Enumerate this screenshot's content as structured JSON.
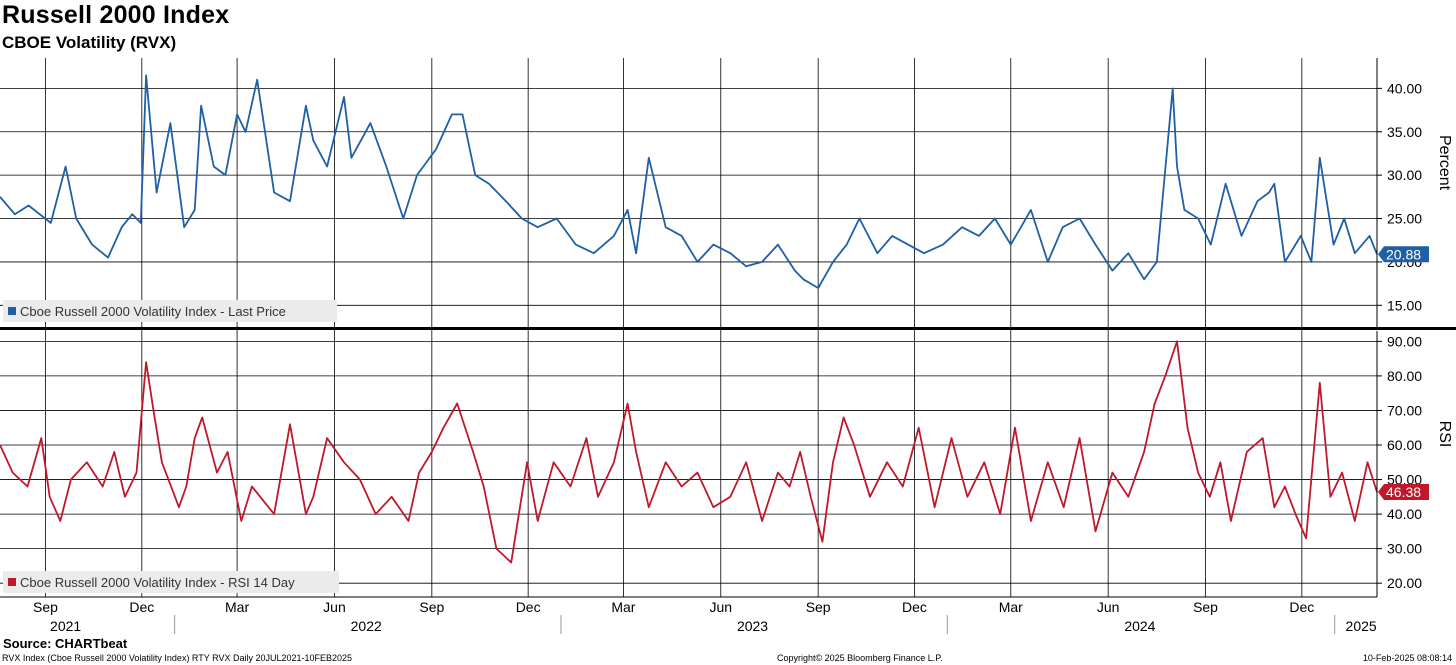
{
  "header": {
    "title": "Russell 2000 Index",
    "subtitle": "CBOE Volatility (RVX)"
  },
  "footer": {
    "source": "Source: CHARTbeat",
    "ticker_info": "RVX Index (Cboe Russell 2000 Volatility Index) RTY RVX  Daily 20JUL2021-10FEB2025",
    "copyright": "Copyright© 2025 Bloomberg Finance L.P.",
    "timestamp": "10-Feb-2025 08:08:14"
  },
  "colors": {
    "price_line": "#1f5fa6",
    "rsi_line": "#c0182b",
    "grid": "#000000"
  },
  "chart_data": [
    {
      "type": "line",
      "name": "price-panel",
      "legend": "Cboe Russell 2000 Volatility Index - Last Price",
      "ylabel": "Percent",
      "ylim": [
        12.5,
        43.5
      ],
      "yticks": [
        "15.00",
        "20.00",
        "25.00",
        "30.00",
        "35.00",
        "40.00"
      ],
      "last_value_label": "20.88",
      "x_range": [
        "2021-07-20",
        "2025-02-10"
      ],
      "series": [
        {
          "name": "Cboe Russell 2000 Volatility Index - Last Price",
          "x": [
            "2021-07-20",
            "2021-08-03",
            "2021-08-16",
            "2021-09-06",
            "2021-09-20",
            "2021-09-30",
            "2021-10-15",
            "2021-10-30",
            "2021-11-12",
            "2021-11-22",
            "2021-11-30",
            "2021-12-05",
            "2021-12-15",
            "2021-12-28",
            "2022-01-10",
            "2022-01-20",
            "2022-01-26",
            "2022-02-07",
            "2022-02-18",
            "2022-03-01",
            "2022-03-09",
            "2022-03-20",
            "2022-04-05",
            "2022-04-20",
            "2022-05-05",
            "2022-05-12",
            "2022-05-25",
            "2022-06-10",
            "2022-06-17",
            "2022-07-05",
            "2022-07-20",
            "2022-08-05",
            "2022-08-18",
            "2022-09-05",
            "2022-09-20",
            "2022-09-30",
            "2022-10-12",
            "2022-10-25",
            "2022-11-10",
            "2022-11-25",
            "2022-12-10",
            "2022-12-28",
            "2023-01-15",
            "2023-02-01",
            "2023-02-20",
            "2023-03-05",
            "2023-03-13",
            "2023-03-25",
            "2023-04-10",
            "2023-04-25",
            "2023-05-10",
            "2023-05-25",
            "2023-06-10",
            "2023-06-25",
            "2023-07-10",
            "2023-07-25",
            "2023-08-10",
            "2023-08-18",
            "2023-09-01",
            "2023-09-15",
            "2023-09-28",
            "2023-10-10",
            "2023-10-27",
            "2023-11-10",
            "2023-11-25",
            "2023-12-10",
            "2023-12-28",
            "2024-01-15",
            "2024-01-31",
            "2024-02-15",
            "2024-03-01",
            "2024-03-20",
            "2024-04-05",
            "2024-04-19",
            "2024-05-05",
            "2024-05-20",
            "2024-06-05",
            "2024-06-20",
            "2024-07-05",
            "2024-07-17",
            "2024-08-01",
            "2024-08-05",
            "2024-08-12",
            "2024-08-25",
            "2024-09-06",
            "2024-09-20",
            "2024-10-05",
            "2024-10-20",
            "2024-10-31",
            "2024-11-05",
            "2024-11-15",
            "2024-11-30",
            "2024-12-10",
            "2024-12-18",
            "2024-12-31",
            "2025-01-10",
            "2025-01-20",
            "2025-02-03",
            "2025-02-10"
          ],
          "values": [
            27.5,
            25.5,
            26.5,
            24.5,
            31,
            25,
            22,
            20.5,
            24,
            25.5,
            24.5,
            41.5,
            28,
            36,
            24,
            26,
            38,
            31,
            30,
            37,
            35,
            41,
            28,
            27,
            38,
            34,
            31,
            39,
            32,
            36,
            31,
            25,
            30,
            33,
            37,
            37,
            30,
            29,
            27,
            25,
            24,
            25,
            22,
            21,
            23,
            26,
            21,
            32,
            24,
            23,
            20,
            22,
            21,
            19.5,
            20,
            22,
            19,
            18,
            17,
            20,
            22,
            25,
            21,
            23,
            22,
            21,
            22,
            24,
            23,
            25,
            22,
            26,
            20,
            24,
            25,
            22,
            19,
            21,
            18,
            20,
            40,
            31,
            26,
            25,
            22,
            29,
            23,
            27,
            28,
            29,
            20,
            23,
            20,
            32,
            22,
            25,
            21,
            23,
            20.88
          ]
        }
      ]
    },
    {
      "type": "line",
      "name": "rsi-panel",
      "legend": "Cboe Russell 2000 Volatility Index - RSI 14 Day",
      "ylabel": "RSI",
      "ylim": [
        16,
        93
      ],
      "yticks": [
        "20.00",
        "30.00",
        "40.00",
        "50.00",
        "60.00",
        "70.00",
        "80.00",
        "90.00"
      ],
      "last_value_label": "46.38",
      "x_range": [
        "2021-07-20",
        "2025-02-10"
      ],
      "series": [
        {
          "name": "Cboe Russell 2000 Volatility Index - RSI 14 Day",
          "x": [
            "2021-07-20",
            "2021-08-01",
            "2021-08-15",
            "2021-08-28",
            "2021-09-05",
            "2021-09-15",
            "2021-09-25",
            "2021-10-10",
            "2021-10-25",
            "2021-11-05",
            "2021-11-15",
            "2021-11-26",
            "2021-12-05",
            "2021-12-12",
            "2021-12-20",
            "2022-01-05",
            "2022-01-12",
            "2022-01-20",
            "2022-01-27",
            "2022-02-10",
            "2022-02-20",
            "2022-03-05",
            "2022-03-15",
            "2022-04-05",
            "2022-04-20",
            "2022-05-05",
            "2022-05-12",
            "2022-05-25",
            "2022-06-10",
            "2022-06-25",
            "2022-07-10",
            "2022-07-25",
            "2022-08-10",
            "2022-08-20",
            "2022-09-01",
            "2022-09-12",
            "2022-09-25",
            "2022-10-10",
            "2022-10-20",
            "2022-11-01",
            "2022-11-15",
            "2022-11-30",
            "2022-12-10",
            "2022-12-25",
            "2023-01-10",
            "2023-01-25",
            "2023-02-05",
            "2023-02-20",
            "2023-03-05",
            "2023-03-13",
            "2023-03-25",
            "2023-04-10",
            "2023-04-25",
            "2023-05-10",
            "2023-05-25",
            "2023-06-10",
            "2023-06-25",
            "2023-07-10",
            "2023-07-25",
            "2023-08-05",
            "2023-08-15",
            "2023-08-25",
            "2023-09-05",
            "2023-09-15",
            "2023-09-25",
            "2023-10-05",
            "2023-10-20",
            "2023-11-05",
            "2023-11-20",
            "2023-12-05",
            "2023-12-20",
            "2024-01-05",
            "2024-01-20",
            "2024-02-05",
            "2024-02-20",
            "2024-03-05",
            "2024-03-20",
            "2024-04-05",
            "2024-04-20",
            "2024-05-05",
            "2024-05-20",
            "2024-06-05",
            "2024-06-20",
            "2024-07-05",
            "2024-07-15",
            "2024-07-25",
            "2024-08-05",
            "2024-08-15",
            "2024-08-25",
            "2024-09-05",
            "2024-09-15",
            "2024-09-25",
            "2024-10-10",
            "2024-10-25",
            "2024-11-05",
            "2024-11-15",
            "2024-11-25",
            "2024-12-05",
            "2024-12-18",
            "2024-12-28",
            "2025-01-08",
            "2025-01-20",
            "2025-02-01",
            "2025-02-10"
          ],
          "values": [
            60,
            52,
            48,
            62,
            45,
            38,
            50,
            55,
            48,
            58,
            45,
            52,
            84,
            70,
            55,
            42,
            48,
            62,
            68,
            52,
            58,
            38,
            48,
            40,
            66,
            40,
            45,
            62,
            55,
            50,
            40,
            45,
            38,
            52,
            58,
            65,
            72,
            58,
            48,
            30,
            26,
            55,
            38,
            55,
            48,
            62,
            45,
            55,
            72,
            58,
            42,
            55,
            48,
            52,
            42,
            45,
            55,
            38,
            52,
            48,
            58,
            45,
            32,
            55,
            68,
            60,
            45,
            55,
            48,
            65,
            42,
            62,
            45,
            55,
            40,
            65,
            38,
            55,
            42,
            62,
            35,
            52,
            45,
            58,
            72,
            80,
            90,
            65,
            52,
            45,
            55,
            38,
            58,
            62,
            42,
            48,
            40,
            33,
            78,
            45,
            52,
            38,
            55,
            46.38
          ]
        }
      ]
    }
  ],
  "x_axis": {
    "months": [
      "Sep",
      "Dec",
      "Mar",
      "Jun",
      "Sep",
      "Dec",
      "Mar",
      "Jun",
      "Sep",
      "Dec",
      "Mar",
      "Jun",
      "Sep",
      "Dec"
    ],
    "years": [
      "2021",
      "2022",
      "2023",
      "2024",
      "2025"
    ]
  }
}
